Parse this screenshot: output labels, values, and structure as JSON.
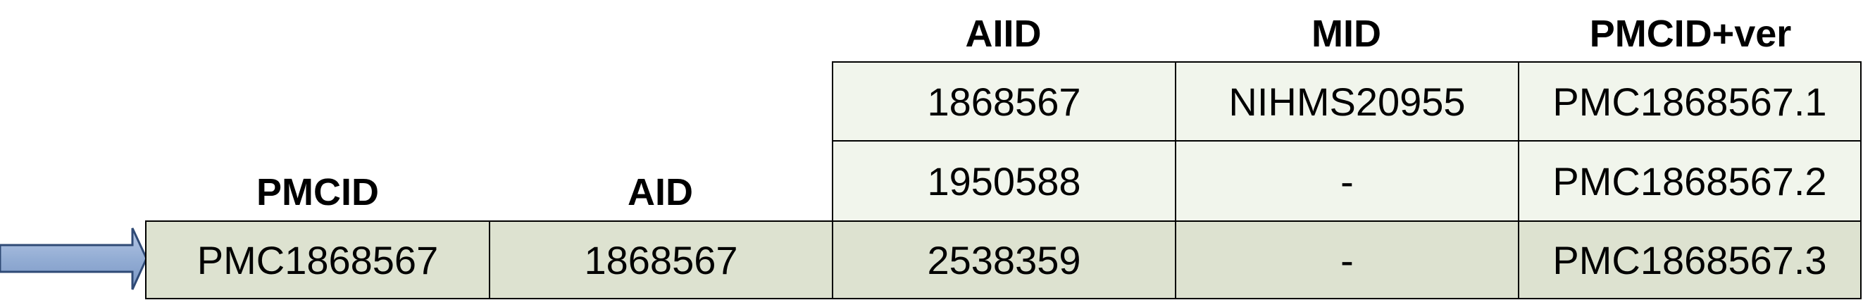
{
  "headers": {
    "pmcid": "PMCID",
    "aid": "AID",
    "aiid": "AIID",
    "mid": "MID",
    "pmcid_ver": "PMCID+ver"
  },
  "main_row": {
    "pmcid": "PMC1868567",
    "aid": "1868567"
  },
  "versions": [
    {
      "aiid": "1868567",
      "mid": "NIHMS20955",
      "pmcid_ver": "PMC1868567.1"
    },
    {
      "aiid": "1950588",
      "mid": "-",
      "pmcid_ver": "PMC1868567.2"
    },
    {
      "aiid": "2538359",
      "mid": "-",
      "pmcid_ver": "PMC1868567.3"
    }
  ],
  "colors": {
    "light_cell": "#f1f5ec",
    "dark_cell": "#dde2d0",
    "arrow_fill": "#93add4",
    "arrow_stroke": "#2f4a75"
  },
  "icons": {
    "pointer": "right-arrow-icon"
  }
}
